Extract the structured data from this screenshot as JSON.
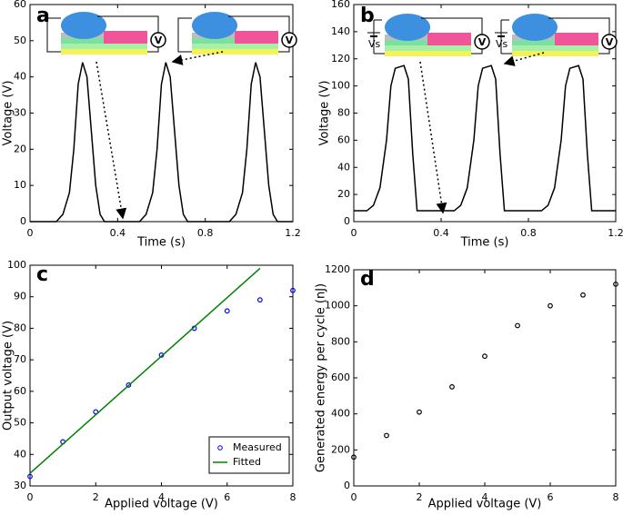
{
  "chart_data": [
    {
      "type": "line",
      "title": "a",
      "x_label": "Time (s)",
      "y_label": "Voltage (V)",
      "annotations": [
        "V",
        "V"
      ],
      "x": [
        0,
        0.12,
        0.15,
        0.18,
        0.2,
        0.22,
        0.24,
        0.26,
        0.28,
        0.3,
        0.32,
        0.34,
        0.5,
        0.53,
        0.56,
        0.58,
        0.6,
        0.62,
        0.64,
        0.66,
        0.68,
        0.7,
        0.72,
        0.91,
        0.94,
        0.97,
        0.99,
        1.01,
        1.03,
        1.05,
        1.07,
        1.09,
        1.11,
        1.13,
        1.2
      ],
      "series": [
        {
          "color": "#000000",
          "values": [
            0,
            0,
            2,
            8,
            20,
            38,
            44,
            40,
            25,
            10,
            2,
            0,
            0,
            2,
            8,
            20,
            38,
            44,
            40,
            25,
            10,
            2,
            0,
            0,
            2,
            8,
            20,
            38,
            44,
            40,
            25,
            10,
            2,
            0,
            0
          ]
        }
      ],
      "xlim": [
        0,
        1.2
      ],
      "xticks": [
        0,
        0.4,
        0.8,
        1.2
      ],
      "ylim": [
        0,
        60
      ],
      "yticks": [
        0,
        10,
        20,
        30,
        40,
        50,
        60
      ]
    },
    {
      "type": "line",
      "title": "b",
      "x_label": "Time (s)",
      "y_label": "Voltage (V)",
      "annotations": [
        "V",
        "V",
        "Vs",
        "Vs"
      ],
      "x": [
        0,
        0.06,
        0.09,
        0.12,
        0.15,
        0.17,
        0.19,
        0.23,
        0.25,
        0.27,
        0.29,
        0.46,
        0.49,
        0.52,
        0.55,
        0.57,
        0.59,
        0.63,
        0.65,
        0.67,
        0.69,
        0.86,
        0.89,
        0.92,
        0.95,
        0.97,
        0.99,
        1.03,
        1.05,
        1.07,
        1.09,
        1.2
      ],
      "series": [
        {
          "color": "#000000",
          "values": [
            8,
            8,
            12,
            25,
            60,
            100,
            113,
            115,
            105,
            50,
            8,
            8,
            12,
            25,
            60,
            100,
            113,
            115,
            105,
            50,
            8,
            8,
            12,
            25,
            60,
            100,
            113,
            115,
            105,
            50,
            8,
            8
          ]
        }
      ],
      "xlim": [
        0,
        1.2
      ],
      "xticks": [
        0,
        0.4,
        0.8,
        1.2
      ],
      "ylim": [
        0,
        160
      ],
      "yticks": [
        0,
        20,
        40,
        60,
        80,
        100,
        120,
        140,
        160
      ]
    },
    {
      "type": "scatter",
      "title": "c",
      "x_label": "Applied voltage (V)",
      "y_label": "Output voltage (V)",
      "series": [
        {
          "name": "Measured",
          "color": "#0000ff",
          "mode": "markers",
          "x": [
            0,
            1,
            2,
            3,
            4,
            5,
            6,
            7,
            8
          ],
          "values": [
            33,
            44,
            53.5,
            62,
            71.5,
            80,
            85.5,
            89,
            92
          ]
        },
        {
          "name": "Fitted",
          "color": "#008000",
          "mode": "line",
          "x": [
            0,
            7
          ],
          "values": [
            34,
            99
          ]
        }
      ],
      "legend": "lower right",
      "xlim": [
        0,
        8
      ],
      "xticks": [
        0,
        2,
        4,
        6,
        8
      ],
      "ylim": [
        30,
        100
      ],
      "yticks": [
        30,
        40,
        50,
        60,
        70,
        80,
        90,
        100
      ]
    },
    {
      "type": "scatter",
      "title": "d",
      "x_label": "Applied voltage (V)",
      "y_label": "Generated energy per cycle (nJ)",
      "series": [
        {
          "color": "#000000",
          "mode": "markers",
          "x": [
            0,
            1,
            2,
            3,
            4,
            5,
            6,
            7,
            8
          ],
          "values": [
            160,
            280,
            410,
            550,
            720,
            890,
            1000,
            1060,
            1120
          ]
        }
      ],
      "xlim": [
        0,
        8
      ],
      "xticks": [
        0,
        2,
        4,
        6,
        8
      ],
      "ylim": [
        0,
        1200
      ],
      "yticks": [
        0,
        200,
        400,
        600,
        800,
        1000,
        1200
      ]
    }
  ]
}
